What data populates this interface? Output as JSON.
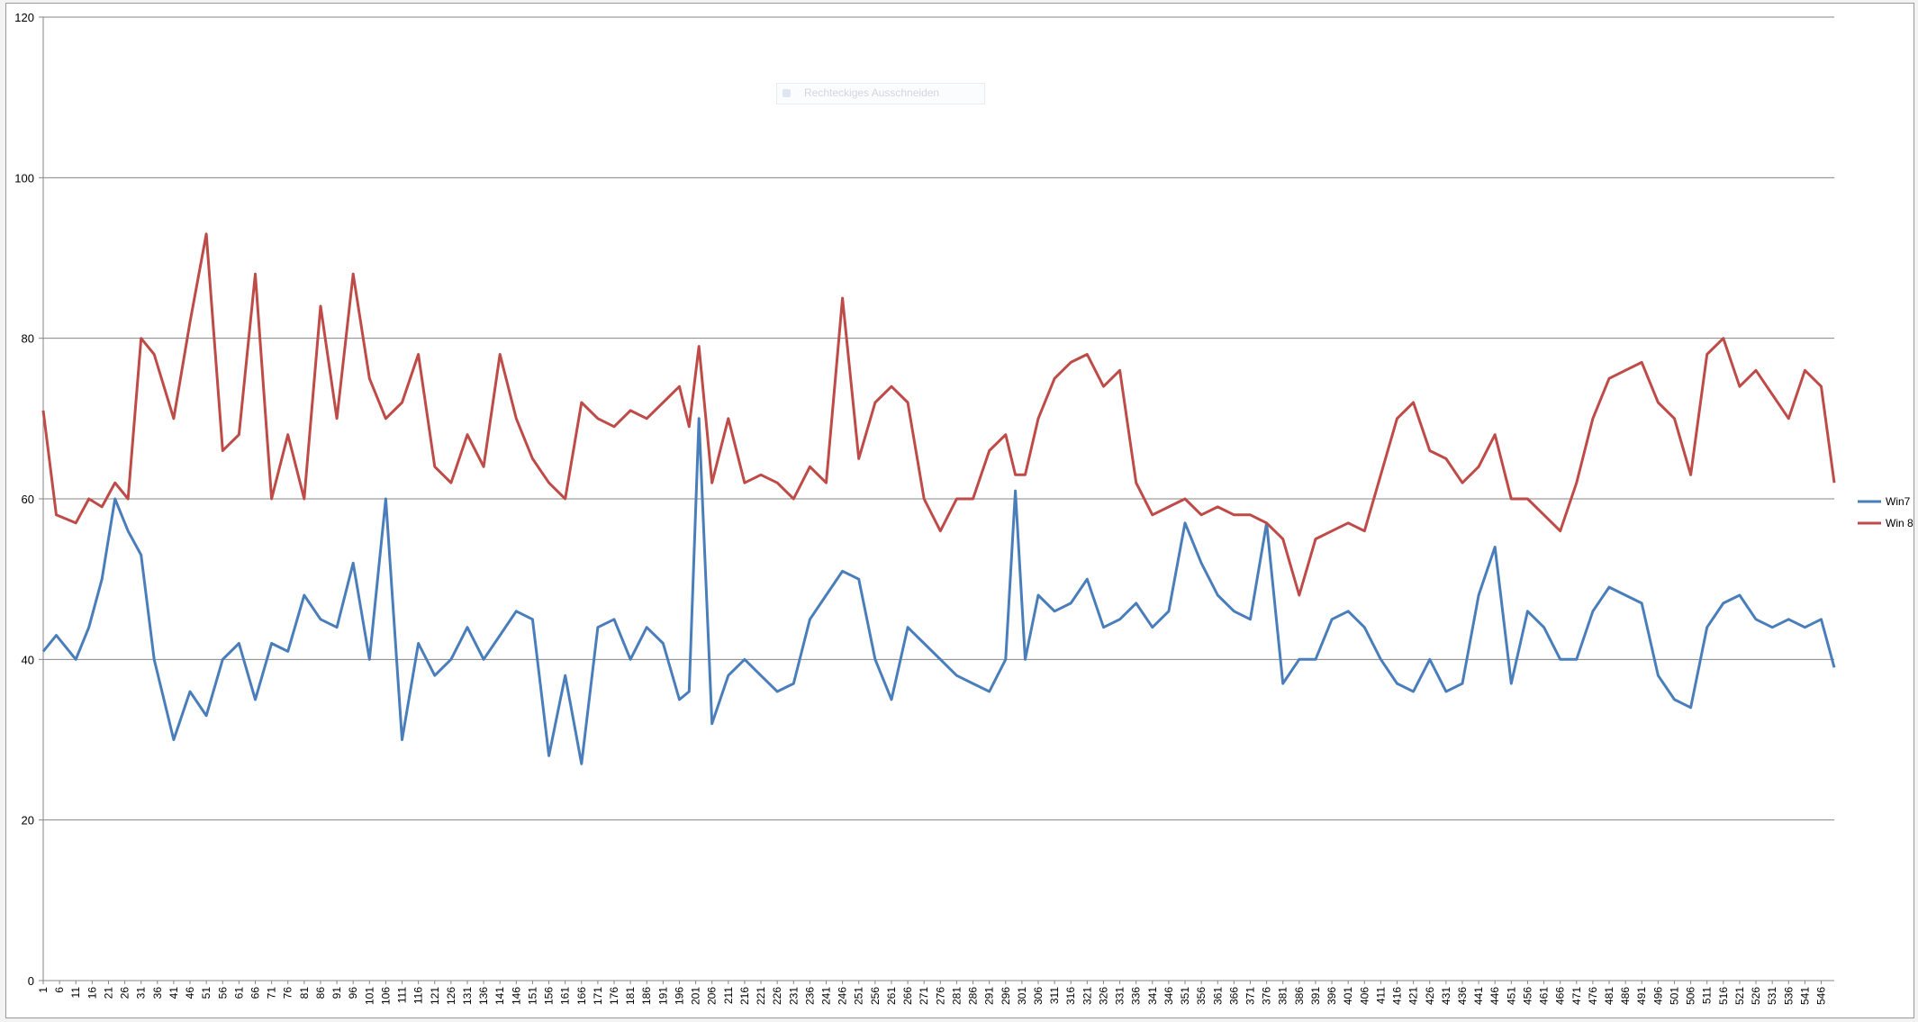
{
  "colors": {
    "win7": "#4a7ebb",
    "win8": "#be4b48",
    "gridline": "#868686",
    "axis": "#868686"
  },
  "overlay": {
    "snip_label": "Rechteckiges Ausschneiden"
  },
  "chart_data": {
    "type": "line",
    "title": "",
    "xlabel": "",
    "ylabel": "",
    "ylim": [
      0,
      120
    ],
    "yticks": [
      0,
      20,
      40,
      60,
      80,
      100,
      120
    ],
    "xrange": [
      1,
      550
    ],
    "xtick_step": 5,
    "grid": "horizontal",
    "legend_position": "right",
    "series": [
      {
        "name": "Win7",
        "x": [
          1,
          5,
          11,
          15,
          19,
          23,
          27,
          31,
          35,
          41,
          46,
          51,
          56,
          61,
          66,
          71,
          76,
          81,
          86,
          91,
          96,
          101,
          106,
          111,
          116,
          121,
          126,
          131,
          136,
          141,
          146,
          151,
          156,
          161,
          166,
          171,
          176,
          181,
          186,
          191,
          196,
          199,
          202,
          206,
          211,
          216,
          221,
          226,
          231,
          236,
          241,
          246,
          251,
          256,
          261,
          266,
          271,
          276,
          281,
          286,
          291,
          296,
          299,
          302,
          306,
          311,
          316,
          321,
          326,
          331,
          336,
          341,
          346,
          351,
          356,
          361,
          366,
          371,
          376,
          381,
          386,
          391,
          396,
          401,
          406,
          411,
          416,
          421,
          426,
          431,
          436,
          441,
          446,
          451,
          456,
          461,
          466,
          471,
          476,
          481,
          486,
          491,
          496,
          501,
          506,
          511,
          516,
          521,
          526,
          531,
          536,
          541,
          546,
          550
        ],
        "values": [
          41,
          43,
          40,
          44,
          50,
          60,
          56,
          53,
          40,
          30,
          36,
          33,
          40,
          42,
          35,
          42,
          41,
          48,
          45,
          44,
          52,
          40,
          60,
          30,
          42,
          38,
          40,
          44,
          40,
          43,
          46,
          45,
          28,
          38,
          27,
          44,
          45,
          40,
          44,
          42,
          35,
          36,
          70,
          32,
          38,
          40,
          38,
          36,
          37,
          45,
          48,
          51,
          50,
          40,
          35,
          44,
          42,
          40,
          38,
          37,
          36,
          40,
          61,
          40,
          48,
          46,
          47,
          50,
          44,
          45,
          47,
          44,
          46,
          57,
          52,
          48,
          46,
          45,
          57,
          37,
          40,
          40,
          45,
          46,
          44,
          40,
          37,
          36,
          40,
          36,
          37,
          48,
          54,
          37,
          46,
          44,
          40,
          40,
          46,
          49,
          48,
          47,
          38,
          35,
          34,
          44,
          47,
          48,
          45,
          44,
          45,
          44,
          45,
          39
        ]
      },
      {
        "name": "Win 8",
        "x": [
          1,
          5,
          11,
          15,
          19,
          23,
          27,
          31,
          35,
          41,
          46,
          51,
          56,
          61,
          66,
          71,
          76,
          81,
          86,
          91,
          96,
          101,
          106,
          111,
          116,
          121,
          126,
          131,
          136,
          141,
          146,
          151,
          156,
          161,
          166,
          171,
          176,
          181,
          186,
          191,
          196,
          199,
          202,
          206,
          211,
          216,
          221,
          226,
          231,
          236,
          241,
          246,
          251,
          256,
          261,
          266,
          271,
          276,
          281,
          286,
          291,
          296,
          299,
          302,
          306,
          311,
          316,
          321,
          326,
          331,
          336,
          341,
          346,
          351,
          356,
          361,
          366,
          371,
          376,
          381,
          386,
          391,
          396,
          401,
          406,
          411,
          416,
          421,
          426,
          431,
          436,
          441,
          446,
          451,
          456,
          461,
          466,
          471,
          476,
          481,
          486,
          491,
          496,
          501,
          506,
          511,
          516,
          521,
          526,
          531,
          536,
          541,
          546,
          550
        ],
        "values": [
          71,
          58,
          57,
          60,
          59,
          62,
          60,
          80,
          78,
          70,
          82,
          93,
          66,
          68,
          88,
          60,
          68,
          60,
          84,
          70,
          88,
          75,
          70,
          72,
          78,
          64,
          62,
          68,
          64,
          78,
          70,
          65,
          62,
          60,
          72,
          70,
          69,
          71,
          70,
          72,
          74,
          69,
          79,
          62,
          70,
          62,
          63,
          62,
          60,
          64,
          62,
          85,
          65,
          72,
          74,
          72,
          60,
          56,
          60,
          60,
          66,
          68,
          63,
          63,
          70,
          75,
          77,
          78,
          74,
          76,
          62,
          58,
          59,
          60,
          58,
          59,
          58,
          58,
          57,
          55,
          48,
          55,
          56,
          57,
          56,
          63,
          70,
          72,
          66,
          65,
          62,
          64,
          68,
          60,
          60,
          58,
          56,
          62,
          70,
          75,
          76,
          77,
          72,
          70,
          63,
          78,
          80,
          74,
          76,
          73,
          70,
          76,
          74,
          62
        ]
      }
    ]
  }
}
